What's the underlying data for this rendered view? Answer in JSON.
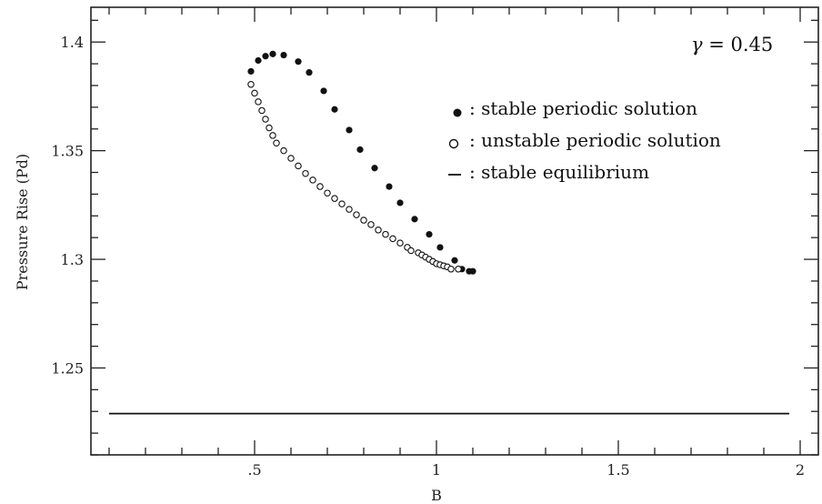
{
  "chart_data": {
    "type": "scatter",
    "title": "",
    "xlabel": "B",
    "ylabel": "Pressure Rise (Pd)",
    "xlim": [
      0.05,
      2.05
    ],
    "ylim": [
      1.21,
      1.416
    ],
    "grid": false,
    "x_ticks": [
      {
        "value": 0.5,
        "label": ".5"
      },
      {
        "value": 1.0,
        "label": "1"
      },
      {
        "value": 1.5,
        "label": "1.5"
      },
      {
        "value": 2.0,
        "label": "2"
      }
    ],
    "y_ticks": [
      {
        "value": 1.25,
        "label": "1.25"
      },
      {
        "value": 1.3,
        "label": "1.3"
      },
      {
        "value": 1.35,
        "label": "1.35"
      },
      {
        "value": 1.4,
        "label": "1.4"
      }
    ],
    "annotation": {
      "symbol": "γ",
      "text": " = 0.45"
    },
    "legend": {
      "placement": "top-right",
      "entries": [
        {
          "marker": "●",
          "label": ": stable periodic solution"
        },
        {
          "marker": "o",
          "label": ": unstable periodic solution"
        },
        {
          "marker": "–",
          "label": ": stable equilibrium"
        }
      ]
    },
    "series": [
      {
        "name": "stable periodic solution",
        "marker": "filled-circle",
        "color": "#111111",
        "points": [
          [
            0.49,
            1.3865
          ],
          [
            0.51,
            1.3915
          ],
          [
            0.53,
            1.3935
          ],
          [
            0.55,
            1.3945
          ],
          [
            0.58,
            1.394
          ],
          [
            0.62,
            1.391
          ],
          [
            0.65,
            1.386
          ],
          [
            0.69,
            1.3775
          ],
          [
            0.72,
            1.369
          ],
          [
            0.76,
            1.3595
          ],
          [
            0.79,
            1.3505
          ],
          [
            0.83,
            1.342
          ],
          [
            0.87,
            1.3335
          ],
          [
            0.9,
            1.326
          ],
          [
            0.94,
            1.3185
          ],
          [
            0.98,
            1.3115
          ],
          [
            1.01,
            1.3055
          ],
          [
            1.05,
            1.2995
          ],
          [
            1.07,
            1.2955
          ],
          [
            1.09,
            1.2945
          ],
          [
            1.1,
            1.2945
          ]
        ]
      },
      {
        "name": "unstable periodic solution",
        "marker": "open-circle",
        "color": "#111111",
        "points": [
          [
            0.49,
            1.3805
          ],
          [
            0.5,
            1.3765
          ],
          [
            0.51,
            1.3725
          ],
          [
            0.52,
            1.3685
          ],
          [
            0.53,
            1.3645
          ],
          [
            0.54,
            1.3605
          ],
          [
            0.55,
            1.357
          ],
          [
            0.56,
            1.3535
          ],
          [
            0.58,
            1.35
          ],
          [
            0.6,
            1.3465
          ],
          [
            0.62,
            1.343
          ],
          [
            0.64,
            1.3395
          ],
          [
            0.66,
            1.3365
          ],
          [
            0.68,
            1.3335
          ],
          [
            0.7,
            1.3305
          ],
          [
            0.72,
            1.328
          ],
          [
            0.74,
            1.3255
          ],
          [
            0.76,
            1.323
          ],
          [
            0.78,
            1.3205
          ],
          [
            0.8,
            1.318
          ],
          [
            0.82,
            1.316
          ],
          [
            0.84,
            1.3135
          ],
          [
            0.86,
            1.3115
          ],
          [
            0.88,
            1.3095
          ],
          [
            0.9,
            1.3075
          ],
          [
            0.92,
            1.3055
          ],
          [
            0.93,
            1.304
          ],
          [
            0.95,
            1.303
          ],
          [
            0.96,
            1.302
          ],
          [
            0.97,
            1.301
          ],
          [
            0.98,
            1.3
          ],
          [
            0.99,
            1.299
          ],
          [
            1.0,
            1.298
          ],
          [
            1.01,
            1.2975
          ],
          [
            1.02,
            1.297
          ],
          [
            1.03,
            1.2965
          ],
          [
            1.04,
            1.2955
          ],
          [
            1.06,
            1.2955
          ]
        ]
      },
      {
        "name": "stable equilibrium",
        "marker": "line",
        "color": "#111111",
        "points": [
          [
            0.1,
            1.229
          ],
          [
            1.97,
            1.229
          ]
        ]
      }
    ]
  }
}
